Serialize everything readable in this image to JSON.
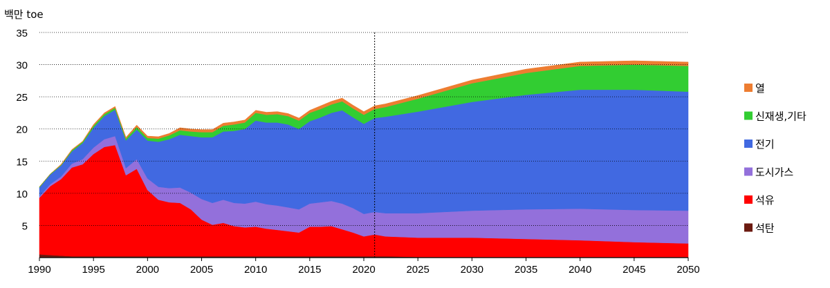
{
  "chart_data": {
    "type": "area",
    "stacked": true,
    "ylabel": "백만 toe",
    "ylim": [
      0,
      35
    ],
    "yticks": [
      5,
      10,
      15,
      20,
      25,
      30,
      35
    ],
    "xlim": [
      1990,
      2050
    ],
    "xticks": [
      1990,
      1995,
      2000,
      2005,
      2010,
      2015,
      2020,
      2025,
      2030,
      2035,
      2040,
      2045,
      2050
    ],
    "grid": "horizontal-dotted",
    "vertical_marker": 2021,
    "legend_position": "right",
    "x": [
      1990,
      1991,
      1992,
      1993,
      1994,
      1995,
      1996,
      1997,
      1998,
      1999,
      2000,
      2001,
      2002,
      2003,
      2004,
      2005,
      2006,
      2007,
      2008,
      2009,
      2010,
      2011,
      2012,
      2013,
      2014,
      2015,
      2016,
      2017,
      2018,
      2019,
      2020,
      2021,
      2022,
      2025,
      2030,
      2035,
      2040,
      2045,
      2050
    ],
    "series": [
      {
        "name": "석탄",
        "color": "#6b1a10",
        "values": [
          0.5,
          0.4,
          0.3,
          0.2,
          0.2,
          0.2,
          0.2,
          0.2,
          0.2,
          0.2,
          0.2,
          0.2,
          0.2,
          0.2,
          0.2,
          0.2,
          0.2,
          0.2,
          0.2,
          0.2,
          0.2,
          0.2,
          0.2,
          0.2,
          0.2,
          0.2,
          0.2,
          0.2,
          0.2,
          0.2,
          0.2,
          0.2,
          0.2,
          0.1,
          0.1,
          0.1,
          0.1,
          0.1,
          0.1
        ]
      },
      {
        "name": "석유",
        "color": "#ff0000",
        "values": [
          8.8,
          10.7,
          11.9,
          13.8,
          14.3,
          15.9,
          17.0,
          17.3,
          12.6,
          13.6,
          10.3,
          8.8,
          8.4,
          8.3,
          7.3,
          5.7,
          4.9,
          5.2,
          4.7,
          4.5,
          4.6,
          4.3,
          4.1,
          3.9,
          3.7,
          4.6,
          4.6,
          4.7,
          4.2,
          3.7,
          3.1,
          3.4,
          3.1,
          3.0,
          3.0,
          2.8,
          2.6,
          2.3,
          2.1
        ]
      },
      {
        "name": "도시가스",
        "color": "#9370db",
        "values": [
          0.2,
          0.3,
          0.4,
          0.6,
          0.8,
          1.0,
          1.2,
          1.4,
          1.1,
          1.5,
          1.8,
          2.0,
          2.2,
          2.4,
          2.6,
          3.2,
          3.4,
          3.6,
          3.6,
          3.7,
          3.9,
          3.8,
          3.8,
          3.7,
          3.6,
          3.6,
          3.8,
          3.9,
          4.0,
          3.8,
          3.5,
          3.5,
          3.6,
          3.8,
          4.2,
          4.6,
          4.9,
          5.0,
          5.1
        ]
      },
      {
        "name": "전기",
        "color": "#4169e1",
        "values": [
          1.4,
          1.5,
          1.7,
          1.9,
          2.5,
          3.1,
          3.6,
          4.1,
          4.3,
          4.6,
          5.9,
          7.0,
          7.6,
          8.2,
          8.8,
          9.6,
          10.2,
          10.6,
          11.2,
          11.6,
          12.6,
          12.7,
          12.9,
          12.9,
          12.5,
          12.8,
          13.2,
          13.7,
          14.5,
          14.1,
          14.0,
          14.6,
          15.0,
          15.8,
          16.9,
          17.8,
          18.5,
          18.7,
          18.5
        ]
      },
      {
        "name": "신재생,기타",
        "color": "#32cd32",
        "values": [
          0.1,
          0.1,
          0.1,
          0.2,
          0.2,
          0.3,
          0.3,
          0.3,
          0.3,
          0.4,
          0.4,
          0.5,
          0.6,
          0.7,
          0.7,
          0.8,
          0.8,
          0.9,
          1.0,
          1.0,
          1.2,
          1.2,
          1.3,
          1.3,
          1.3,
          1.3,
          1.3,
          1.3,
          1.4,
          1.4,
          1.4,
          1.4,
          1.5,
          2.0,
          2.9,
          3.4,
          3.7,
          3.9,
          4.0
        ]
      },
      {
        "name": "열",
        "color": "#ed7d31",
        "values": [
          0.0,
          0.0,
          0.1,
          0.1,
          0.1,
          0.2,
          0.2,
          0.2,
          0.2,
          0.3,
          0.3,
          0.3,
          0.3,
          0.4,
          0.4,
          0.4,
          0.4,
          0.4,
          0.4,
          0.4,
          0.4,
          0.4,
          0.4,
          0.4,
          0.4,
          0.4,
          0.5,
          0.5,
          0.5,
          0.5,
          0.5,
          0.5,
          0.5,
          0.5,
          0.5,
          0.6,
          0.6,
          0.6,
          0.6
        ]
      }
    ]
  }
}
